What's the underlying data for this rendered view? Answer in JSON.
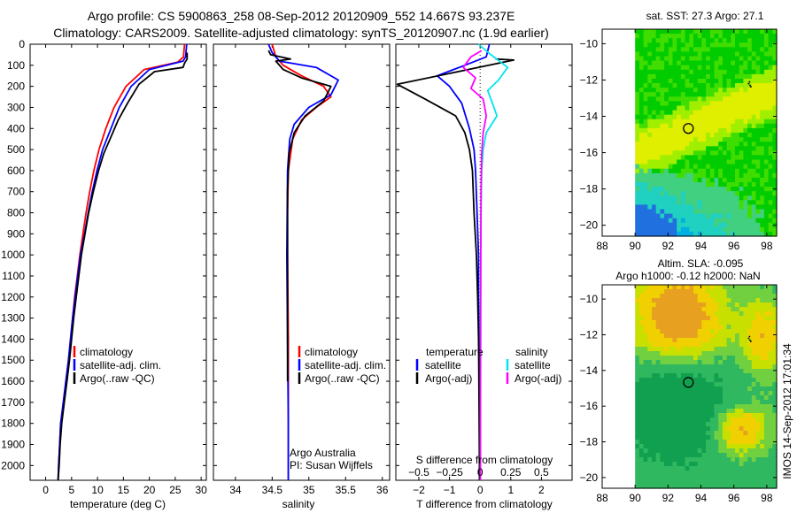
{
  "header": {
    "line1": "Argo profile: CS 5900863_258 08-Sep-2012 20120909_552 14.667S 93.237E",
    "line2": "Climatology: CARS2009. Satellite-adjusted climatology: synTS_20120907.nc (1.9d earlier)"
  },
  "stamp": "IMOS 14-Sep-2012 17:01:34",
  "colors": {
    "climatology": "#ff0000",
    "satellite": "#0000ff",
    "argo": "#000000",
    "satellite_salinity": "#00e5ee",
    "argo_salinity": "#ff00ff"
  },
  "chart_data": [
    {
      "type": "line",
      "id": "temperature",
      "xlabel": "temperature (deg C)",
      "ylabel": "",
      "xlim": [
        -3,
        31
      ],
      "ylim": [
        2070,
        0
      ],
      "y_reversed": true,
      "xticks": [
        0,
        5,
        10,
        15,
        20,
        25,
        30
      ],
      "xtick_labels": [
        "0",
        "5",
        "10",
        "15",
        "20",
        "25",
        "30"
      ],
      "yticks": [
        0,
        100,
        200,
        300,
        400,
        500,
        600,
        700,
        800,
        900,
        1000,
        1100,
        1200,
        1300,
        1400,
        1500,
        1600,
        1700,
        1800,
        1900,
        2000
      ],
      "ytick_labels": [
        "0",
        "100",
        "200",
        "300",
        "400",
        "500",
        "600",
        "700",
        "800",
        "900",
        "1000",
        "1100",
        "1200",
        "1300",
        "1400",
        "1500",
        "1600",
        "1700",
        "1800",
        "1900",
        "2000"
      ],
      "legend": {
        "placement": "bottom-center",
        "entries": [
          "climatology",
          "satellite-adj. clim.",
          "Argo(..raw -QC)"
        ]
      },
      "series": [
        {
          "name": "climatology",
          "color_key": "climatology",
          "x": [
            26.8,
            26.6,
            25.5,
            19.0,
            15.5,
            13.2,
            11.6,
            10.3,
            9.3,
            8.5,
            7.8,
            7.2,
            6.6,
            6.1,
            5.6,
            5.2,
            4.4,
            3.9,
            3.4,
            2.9,
            2.7,
            2.5,
            2.4
          ],
          "y": [
            0,
            60,
            85,
            120,
            200,
            300,
            400,
            500,
            600,
            700,
            800,
            900,
            1000,
            1100,
            1200,
            1300,
            1500,
            1600,
            1700,
            1800,
            1900,
            2000,
            2070
          ]
        },
        {
          "name": "satellite-adj. clim.",
          "color_key": "satellite",
          "x": [
            27.2,
            27.0,
            26.5,
            20.0,
            16.5,
            14.2,
            12.6,
            11.0,
            9.9,
            9.0,
            8.2,
            7.5,
            6.7,
            6.2,
            5.7,
            5.2,
            4.4,
            3.9,
            3.4,
            2.9,
            2.7,
            2.5,
            2.4
          ],
          "y": [
            0,
            60,
            80,
            120,
            200,
            300,
            400,
            500,
            600,
            700,
            800,
            900,
            1000,
            1100,
            1200,
            1300,
            1500,
            1600,
            1700,
            1800,
            1900,
            2000,
            2070
          ]
        },
        {
          "name": "Argo(..raw -QC)",
          "color_key": "argo",
          "x": [
            27.3,
            27.3,
            26.8,
            26.5,
            21.0,
            18.0,
            15.8,
            14.0,
            12.6,
            11.2,
            10.2,
            9.2,
            8.3,
            7.6,
            6.9,
            6.4,
            5.9,
            5.4,
            4.6,
            4.1,
            3.6,
            3.1,
            2.8,
            2.6,
            2.4
          ],
          "y": [
            40,
            70,
            90,
            110,
            130,
            190,
            280,
            360,
            440,
            520,
            600,
            700,
            800,
            900,
            1000,
            1100,
            1200,
            1300,
            1500,
            1600,
            1700,
            1800,
            1900,
            2000,
            2070
          ]
        }
      ]
    },
    {
      "type": "line",
      "id": "salinity",
      "xlabel": "salinity",
      "ylabel": "",
      "xlim": [
        33.7,
        36.1
      ],
      "ylim": [
        2070,
        0
      ],
      "y_reversed": true,
      "xticks": [
        34,
        34.5,
        35,
        35.5,
        36
      ],
      "xtick_labels": [
        "34",
        "34.5",
        "35",
        "35.5",
        "36"
      ],
      "legend": {
        "placement": "bottom-center",
        "entries": [
          "climatology",
          "satellite-adj. clim.",
          "Argo(..raw -QC)"
        ]
      },
      "annotations": [
        "Argo Australia",
        "PI: Susan Wijffels"
      ],
      "series": [
        {
          "name": "climatology",
          "color_key": "climatology",
          "x": [
            34.5,
            34.55,
            34.65,
            34.9,
            35.2,
            35.3,
            35.1,
            34.9,
            34.78,
            34.72,
            34.71,
            34.71,
            34.72,
            34.72,
            34.72
          ],
          "y": [
            0,
            60,
            100,
            150,
            200,
            250,
            300,
            360,
            450,
            600,
            800,
            1000,
            1400,
            1800,
            2070
          ]
        },
        {
          "name": "satellite-adj. clim.",
          "color_key": "satellite",
          "x": [
            34.45,
            34.5,
            34.6,
            35.1,
            35.4,
            35.3,
            35.0,
            34.8,
            34.74,
            34.71,
            34.7,
            34.71,
            34.72,
            34.72
          ],
          "y": [
            0,
            40,
            80,
            110,
            170,
            240,
            300,
            380,
            450,
            600,
            1000,
            1400,
            1800,
            2070
          ]
        },
        {
          "name": "Argo(..raw -QC)",
          "color_key": "argo",
          "x": [
            34.45,
            34.48,
            34.75,
            34.55,
            34.65,
            34.9,
            35.3,
            35.2,
            34.95,
            34.8,
            34.73,
            34.71,
            34.71,
            34.71
          ],
          "y": [
            30,
            50,
            70,
            80,
            120,
            160,
            200,
            270,
            340,
            420,
            520,
            700,
            1100,
            1600
          ]
        }
      ]
    },
    {
      "type": "line",
      "id": "difference",
      "xlabel": "T difference from climatology",
      "top_axis_label": "S difference from climatology",
      "xlim": [
        -2.75,
        3.0
      ],
      "ylim": [
        2070,
        0
      ],
      "y_reversed": true,
      "xticks": [
        -2,
        -1,
        0,
        1,
        2
      ],
      "xtick_labels": [
        "−2",
        "−1",
        "0",
        "1",
        "2"
      ],
      "salinity_ticks": [
        -0.5,
        -0.25,
        0,
        0.25,
        0.5
      ],
      "salinity_tick_labels": [
        "−0.5",
        "−0.25",
        "0",
        "0.25",
        "0.5"
      ],
      "zero_line": "dotted",
      "legend": {
        "placement": "bottom-center",
        "temperature_title": "temperature",
        "salinity_title": "salinity",
        "entries": [
          "satellite",
          "Argo(-adj)",
          "satellite",
          "Argo(-adj)"
        ]
      },
      "series": [
        {
          "name": "satellite",
          "group": "temperature",
          "color_key": "satellite",
          "x": [
            0.3,
            0.2,
            -0.5,
            -1.4,
            -1.0,
            -0.6,
            -0.35,
            -0.2,
            -0.15,
            -0.1,
            -0.05,
            -0.05,
            -0.03,
            -0.02,
            -0.02
          ],
          "y": [
            0,
            60,
            100,
            150,
            200,
            280,
            400,
            500,
            600,
            800,
            1000,
            1200,
            1500,
            1800,
            2070
          ]
        },
        {
          "name": "Argo(-adj)",
          "group": "temperature",
          "color_key": "argo",
          "x": [
            0.5,
            1.1,
            -2.7,
            -1.8,
            -0.8,
            -0.5,
            -0.35,
            -0.25,
            -0.2,
            -0.12,
            -0.08,
            -0.05,
            -0.04,
            -0.03,
            -0.02
          ],
          "y": [
            70,
            75,
            190,
            260,
            340,
            420,
            500,
            600,
            800,
            1000,
            1200,
            1400,
            1600,
            1800,
            2070
          ]
        },
        {
          "name": "satellite",
          "group": "salinity",
          "color_key": "satellite_salinity",
          "x": [
            -0.05,
            0.35,
            0.9,
            0.6,
            0.25,
            0.4,
            0.55,
            0.2,
            0.1,
            0.05,
            0.03,
            0.02,
            0.02,
            0.01,
            0.01
          ],
          "y": [
            0,
            50,
            110,
            170,
            220,
            280,
            340,
            420,
            500,
            600,
            800,
            1000,
            1400,
            1800,
            2070
          ]
        },
        {
          "name": "Argo(-adj)",
          "group": "salinity",
          "color_key": "argo_salinity",
          "x": [
            0.05,
            -0.3,
            -0.55,
            -0.15,
            -0.3,
            0.1,
            0.2,
            0.1,
            0.05,
            0.03,
            0.02,
            0.01,
            0.01
          ],
          "y": [
            30,
            60,
            110,
            160,
            210,
            260,
            340,
            420,
            520,
            700,
            1000,
            1500,
            2070
          ]
        }
      ]
    },
    {
      "type": "heatmap",
      "id": "sst_map",
      "title": "sat. SST: 27.3 Argo: 27.1",
      "xlim": [
        88,
        98.6
      ],
      "ylim": [
        -20.6,
        -9.2
      ],
      "xticks": [
        88,
        90,
        92,
        94,
        96,
        98
      ],
      "xtick_labels": [
        "88",
        "90",
        "92",
        "94",
        "96",
        "98"
      ],
      "yticks": [
        -10,
        -12,
        -14,
        -16,
        -18,
        -20
      ],
      "ytick_labels": [
        "−10",
        "−12",
        "−14",
        "−16",
        "−18",
        "−20"
      ],
      "data_extent_x": [
        90,
        98.6
      ],
      "argo_position": [
        93.237,
        -14.667
      ],
      "colors": [
        "#00cc00",
        "#40dd00",
        "#a0ee00",
        "#e0ee00",
        "#40d080",
        "#20d0c0",
        "#00b0e0",
        "#2070e0"
      ]
    },
    {
      "type": "heatmap",
      "id": "sla_map",
      "title": "Altim. SLA: -0.095",
      "subtitle": "Argo h1000: -0.12 h2000: NaN",
      "xlim": [
        88,
        98.6
      ],
      "ylim": [
        -20.6,
        -9.2
      ],
      "xticks": [
        88,
        90,
        92,
        94,
        96,
        98
      ],
      "xtick_labels": [
        "88",
        "90",
        "92",
        "94",
        "96",
        "98"
      ],
      "yticks": [
        -10,
        -12,
        -14,
        -16,
        -18,
        -20
      ],
      "ytick_labels": [
        "−10",
        "−12",
        "−14",
        "−16",
        "−18",
        "−20"
      ],
      "data_extent_x": [
        90,
        98.6
      ],
      "argo_position": [
        93.237,
        -14.667
      ],
      "colors": [
        "#e8a020",
        "#f0d000",
        "#c8e000",
        "#70d040",
        "#30b860",
        "#10a050"
      ]
    }
  ]
}
